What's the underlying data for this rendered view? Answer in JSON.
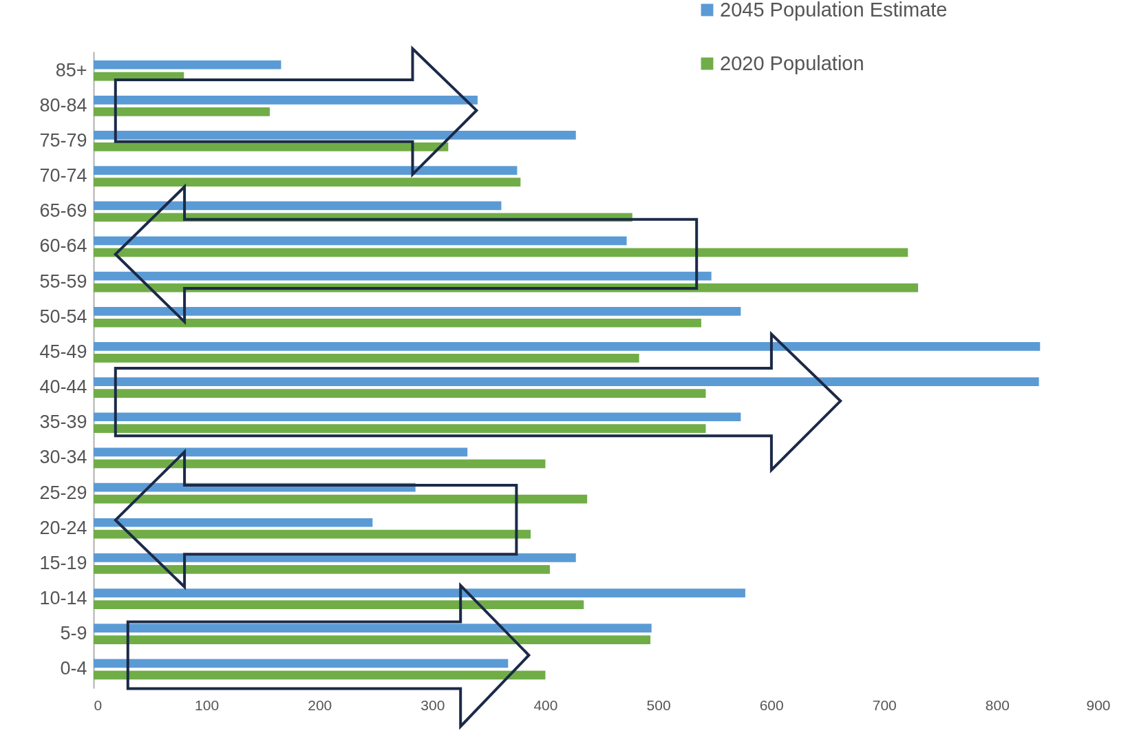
{
  "chart_data": {
    "type": "bar",
    "orientation": "horizontal",
    "categories": [
      "85+",
      "80-84",
      "75-79",
      "70-74",
      "65-69",
      "60-64",
      "55-59",
      "50-54",
      "45-49",
      "40-44",
      "35-39",
      "30-34",
      "25-29",
      "20-24",
      "15-19",
      "10-14",
      "5-9",
      "0-4"
    ],
    "series": [
      {
        "name": "2045 Population Estimate",
        "color": "#5b9bd5",
        "values": [
          166,
          340,
          427,
          375,
          361,
          472,
          547,
          573,
          838,
          837,
          573,
          331,
          285,
          247,
          427,
          577,
          494,
          367
        ]
      },
      {
        "name": "2020 Population",
        "color": "#70ad47",
        "values": [
          80,
          156,
          314,
          378,
          477,
          721,
          730,
          538,
          483,
          542,
          542,
          400,
          437,
          387,
          404,
          434,
          493,
          400
        ]
      }
    ],
    "xlim": [
      0,
      900
    ],
    "xticks": [
      0,
      100,
      200,
      300,
      400,
      500,
      600,
      700,
      800,
      900
    ],
    "grid": false,
    "legend": "top right"
  }
}
